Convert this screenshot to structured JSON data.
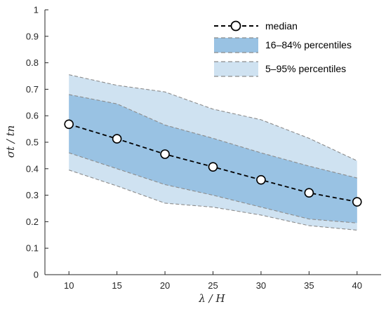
{
  "chart_data": {
    "type": "line",
    "x": [
      10,
      15,
      20,
      25,
      30,
      35,
      40
    ],
    "xticks": [
      "10",
      "15",
      "20",
      "25",
      "30",
      "35",
      "40"
    ],
    "yticks": [
      "0",
      "0.1",
      "0.2",
      "0.3",
      "0.4",
      "0.5",
      "0.6",
      "0.7",
      "0.8",
      "0.9",
      "1"
    ],
    "xlim": [
      7.5,
      42.5
    ],
    "ylim": [
      0,
      1
    ],
    "xlabel": "λ / H",
    "ylabel": "σt / tn",
    "grid": false,
    "legend_position": "top-right",
    "series": [
      {
        "name": "median",
        "kind": "line-markers",
        "values": [
          0.568,
          0.513,
          0.455,
          0.407,
          0.358,
          0.309,
          0.275
        ],
        "color": "#000000"
      },
      {
        "name": "16–84% percentiles",
        "kind": "band",
        "lower": [
          0.46,
          0.4,
          0.34,
          0.3,
          0.255,
          0.21,
          0.195
        ],
        "upper": [
          0.68,
          0.645,
          0.565,
          0.515,
          0.46,
          0.41,
          0.365
        ],
        "color": "#99c2e3"
      },
      {
        "name": "5–95% percentiles",
        "kind": "band",
        "lower": [
          0.395,
          0.335,
          0.27,
          0.255,
          0.225,
          0.185,
          0.168
        ],
        "upper": [
          0.755,
          0.715,
          0.69,
          0.625,
          0.585,
          0.515,
          0.43
        ],
        "color": "#cfe2f1"
      }
    ],
    "band_edge_color": "#8c8c8c"
  }
}
